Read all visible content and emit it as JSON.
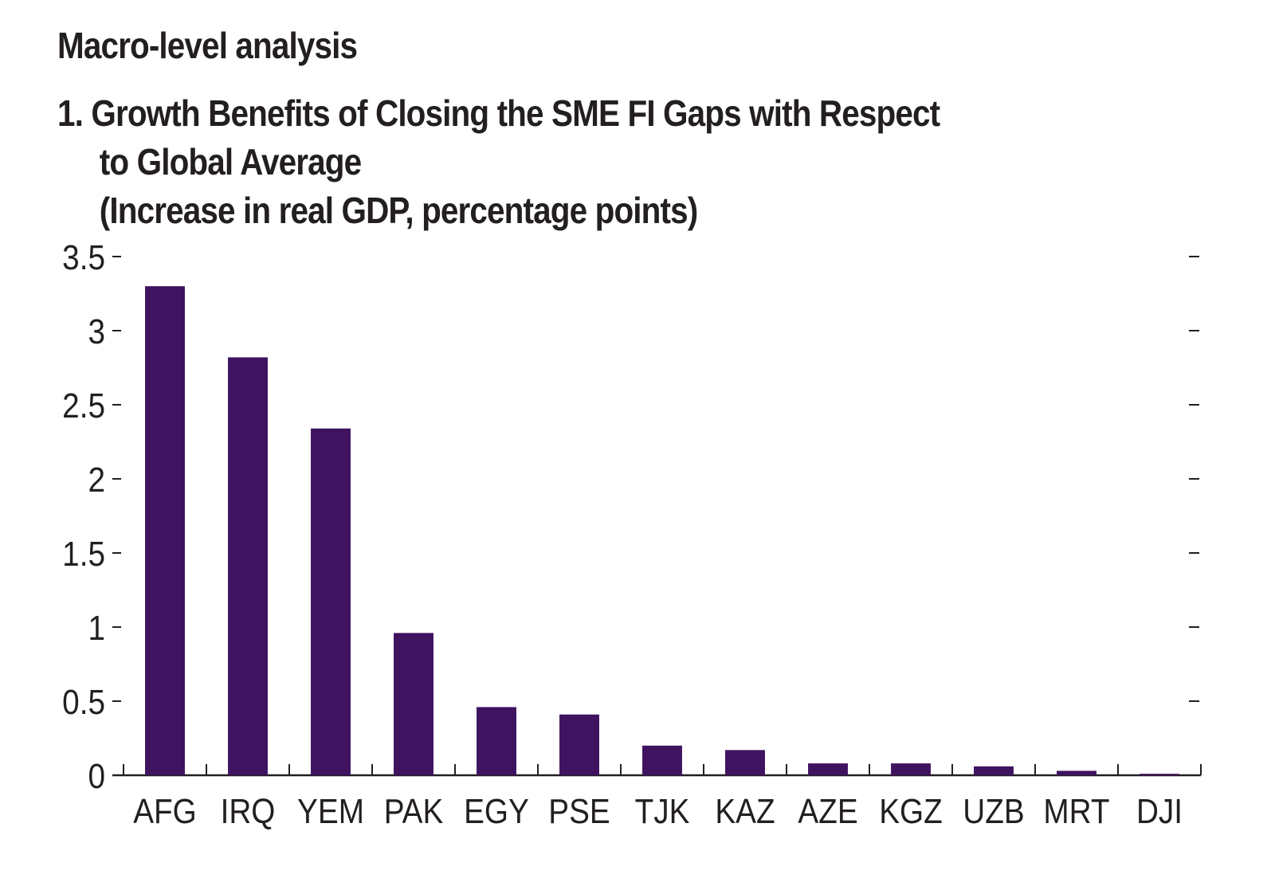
{
  "heading": "Macro-level analysis",
  "title_lines": [
    "1. Growth Benefits of Closing the SME FI Gaps with Respect",
    "to Global Average",
    "(Increase in real GDP, percentage points)"
  ],
  "colors": {
    "bar": "#3f1360",
    "axis": "#231f20"
  },
  "chart_data": {
    "type": "bar",
    "title": "1. Growth Benefits of Closing the SME FI Gaps with Respect to Global Average",
    "subtitle": "(Increase in real GDP, percentage points)",
    "xlabel": "",
    "ylabel": "",
    "categories": [
      "AFG",
      "IRQ",
      "YEM",
      "PAK",
      "EGY",
      "PSE",
      "TJK",
      "KAZ",
      "AZE",
      "KGZ",
      "UZB",
      "MRT",
      "DJI"
    ],
    "values": [
      3.3,
      2.82,
      2.34,
      0.96,
      0.46,
      0.41,
      0.2,
      0.17,
      0.08,
      0.08,
      0.06,
      0.03,
      0.01
    ],
    "ylim": [
      0,
      3.5
    ],
    "yticks": [
      0,
      0.5,
      1,
      1.5,
      2,
      2.5,
      3,
      3.5
    ],
    "ytick_labels": [
      "0",
      "0.5",
      "1",
      "1.5",
      "2",
      "2.5",
      "3",
      "3.5"
    ],
    "grid": false,
    "legend": "none"
  }
}
